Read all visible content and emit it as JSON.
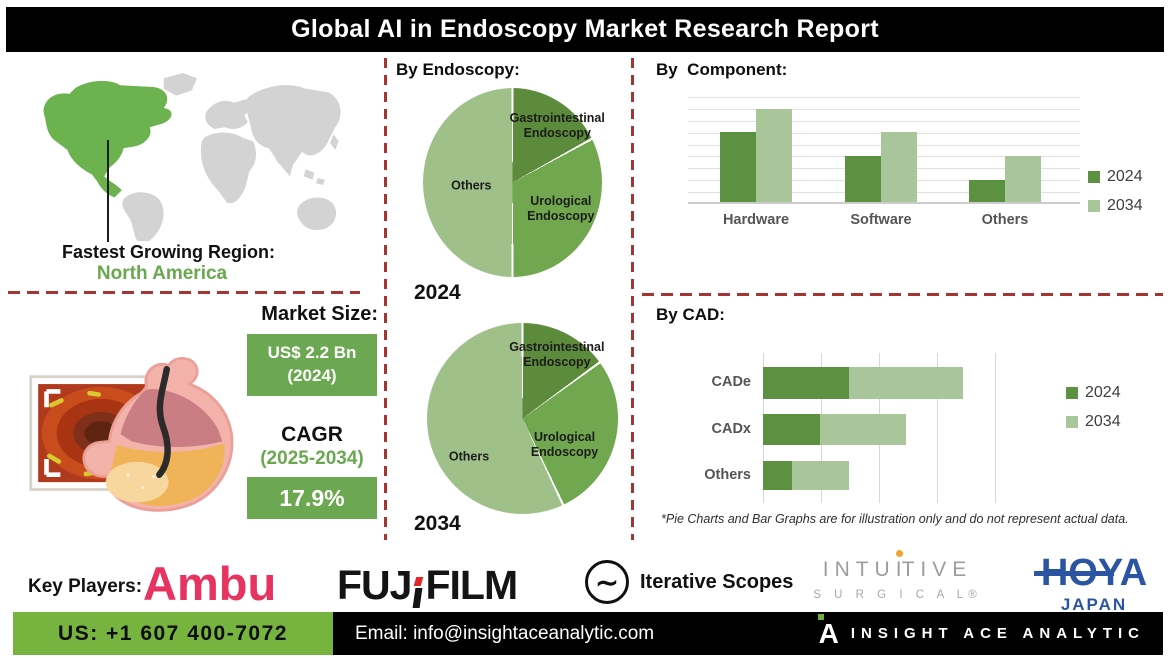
{
  "banner": {
    "title": "Global AI in Endoscopy Market Research Report"
  },
  "region": {
    "label": "Fastest Growing Region:",
    "value": "North America"
  },
  "market_size": {
    "label": "Market Size:",
    "value_line1": "US$ 2.2 Bn",
    "value_line2": "(2024)",
    "cagr_label": "CAGR",
    "cagr_period": "(2025-2034)",
    "cagr_value": "17.9%"
  },
  "chart_data": [
    {
      "type": "pie",
      "title": "By Endoscopy:",
      "year": "2024",
      "slices": [
        {
          "label": "Gastrointestinal Endoscopy",
          "value": 17,
          "color": "#5c8b3c"
        },
        {
          "label": "Urological Endoscopy",
          "value": 33,
          "color": "#71a84f"
        },
        {
          "label": "Others",
          "value": 50,
          "color": "#9fc089"
        }
      ],
      "note": "illustrative proportions"
    },
    {
      "type": "pie",
      "title": "By Endoscopy:",
      "year": "2034",
      "slices": [
        {
          "label": "Gastrointestinal Endoscopy",
          "value": 15,
          "color": "#5c8b3c"
        },
        {
          "label": "Urological Endoscopy",
          "value": 28,
          "color": "#71a84f"
        },
        {
          "label": "Others",
          "value": 57,
          "color": "#9fc089"
        }
      ],
      "note": "illustrative proportions"
    },
    {
      "type": "bar",
      "title": "By  Component:",
      "categories": [
        "Hardware",
        "Software",
        "Others"
      ],
      "series": [
        {
          "name": "2024",
          "color": "#5b9141",
          "values": [
            65,
            43,
            21
          ]
        },
        {
          "name": "2034",
          "color": "#a9c69a",
          "values": [
            87,
            65,
            43
          ]
        }
      ],
      "ylim": [
        0,
        100
      ],
      "grid": true,
      "legend_position": "right",
      "note": "illustrative values, no numeric axis shown"
    },
    {
      "type": "stacked-bar-horizontal",
      "title": "By CAD:",
      "categories": [
        "CADe",
        "CADx",
        "Others"
      ],
      "series": [
        {
          "name": "2024",
          "color": "#5b9141",
          "values": [
            27,
            18,
            9
          ]
        },
        {
          "name": "2034",
          "color": "#a9c69a",
          "values": [
            36,
            27,
            18
          ]
        }
      ],
      "xlim": [
        0,
        100
      ],
      "grid": true,
      "legend_position": "right",
      "note": "illustrative values, no numeric axis shown"
    }
  ],
  "footnote": "*Pie Charts and Bar Graphs are for illustration only and do not represent actual data.",
  "key_players": {
    "label": "Key Players:",
    "ambu": "Ambu",
    "fujifilm": {
      "part1": "FUJ",
      "part2": "FILM"
    },
    "iterative": {
      "icon": "∼",
      "text": "Iterative Scopes"
    },
    "intuitive": {
      "part1": "INTU",
      "dot_letter": "I",
      "part2": "TIVE",
      "sub": "S U R G I C A L®"
    },
    "hoya": {
      "word": "HOYA",
      "sub": "JAPAN"
    }
  },
  "footer": {
    "phone": "US: +1 607 400-7072",
    "email": "Email: info@insightaceanalytic.com",
    "brand_initial": "A",
    "brand": "INSIGHT ACE ANALYTIC"
  },
  "colors": {
    "banner_bg": "#000000",
    "dashed_divider": "#a43533",
    "map_highlight_green": "#6cb24e",
    "map_gray": "#d3d3d3",
    "series_2024": "#5b9141",
    "series_2034": "#a9c69a",
    "value_box_green": "#6ca751",
    "footer_green": "#77b43f",
    "ambu_pink": "#e73360",
    "fujifilm_red": "#e2262b",
    "hoya_blue": "#2b55a2",
    "intuitive_gray": "#9d9d9d",
    "intuitive_dot_orange": "#f0a431"
  }
}
